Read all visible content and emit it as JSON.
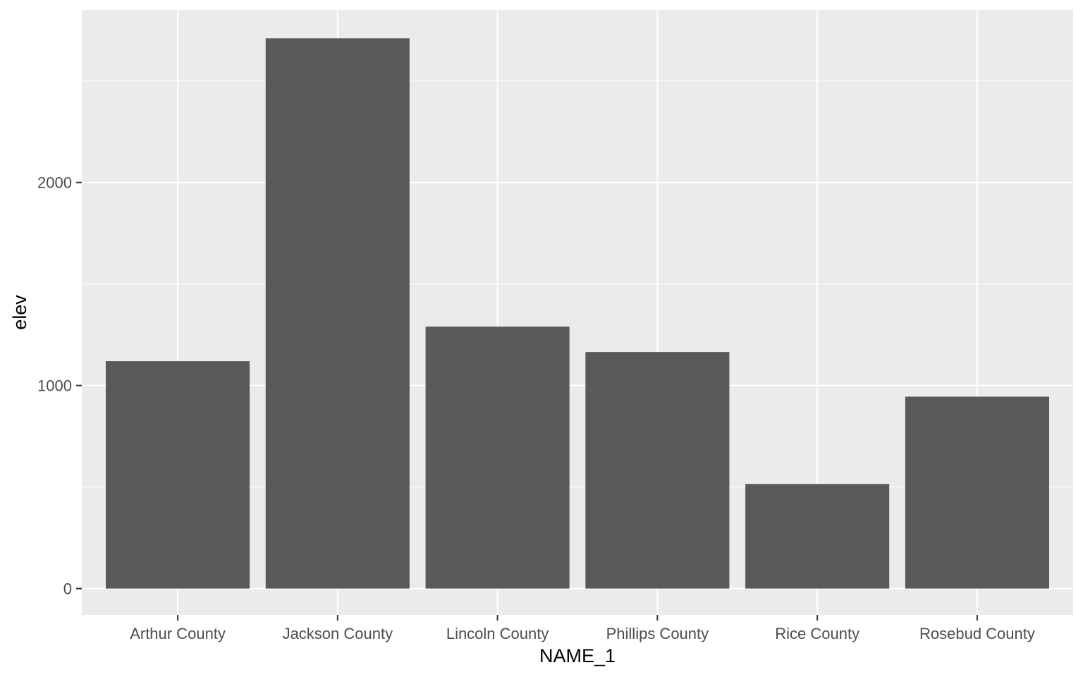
{
  "chart_data": {
    "type": "bar",
    "title": "",
    "xlabel": "NAME_1",
    "ylabel": "elev",
    "categories": [
      "Arthur County",
      "Jackson County",
      "Lincoln County",
      "Phillips County",
      "Rice County",
      "Rosebud County"
    ],
    "values": [
      1120,
      2710,
      1290,
      1165,
      515,
      945
    ],
    "ylim": [
      -130,
      2850
    ],
    "yticks": [
      0,
      1000,
      2000
    ],
    "ytick_labels": [
      "0",
      "1000",
      "2000"
    ],
    "grid": true,
    "legend": "none",
    "colors": {
      "bar": "#595959",
      "panel_background": "#ebebeb",
      "grid_line": "#ffffff",
      "tick_label": "#4d4d4d",
      "axis_tick": "#333333"
    }
  }
}
